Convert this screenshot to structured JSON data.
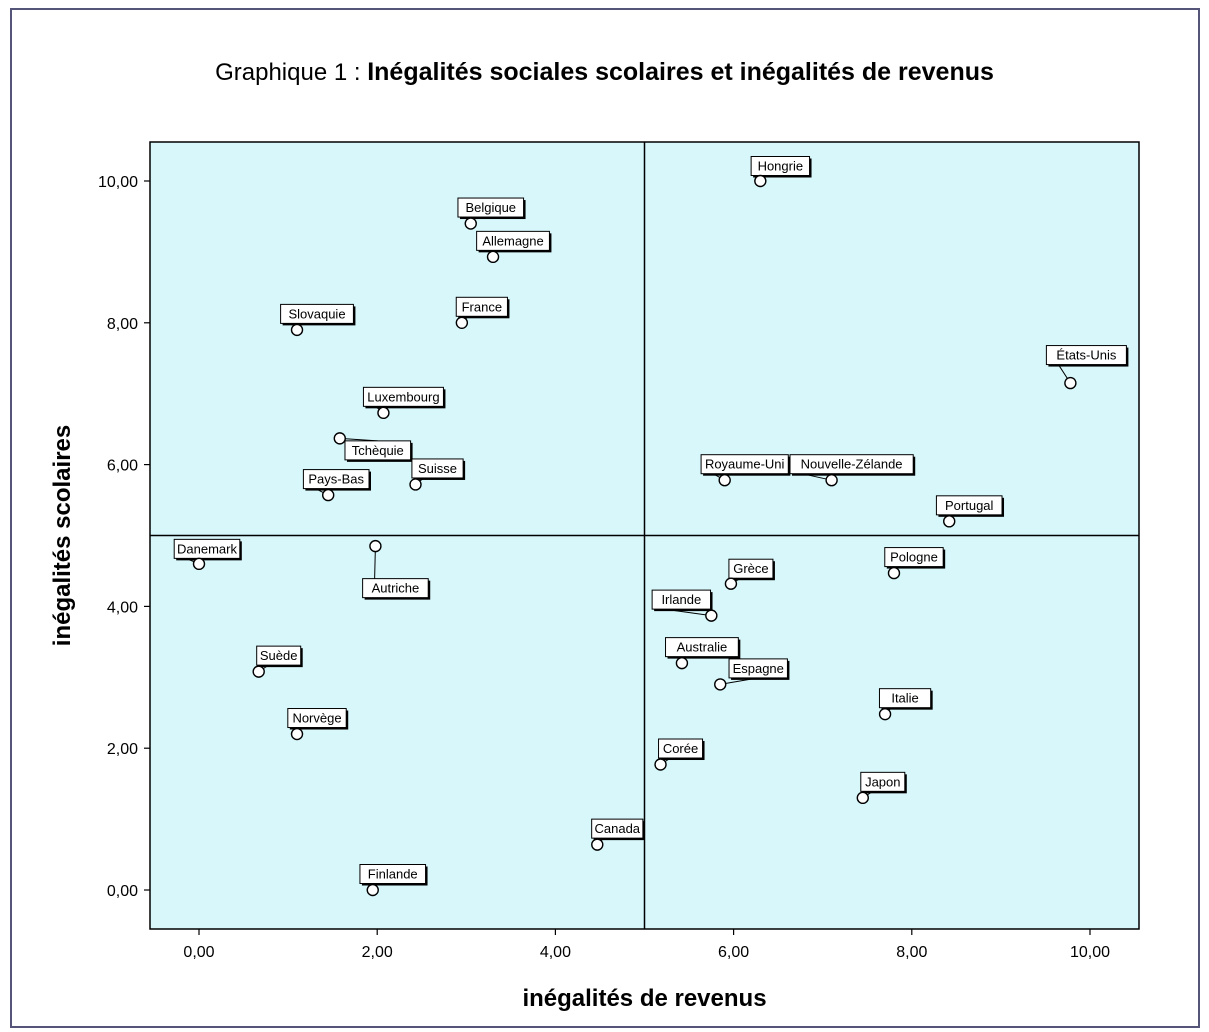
{
  "chart_data": {
    "type": "scatter",
    "title_prefix": "Graphique 1 :",
    "title": "Inégalités sociales scolaires et inégalités de revenus",
    "xlabel": "inégalités de revenus",
    "ylabel": "inégalités scolaires",
    "xlim": [
      -0.55,
      10.55
    ],
    "ylim": [
      -0.55,
      10.55
    ],
    "xticks": [
      "0,00",
      "2,00",
      "4,00",
      "6,00",
      "8,00",
      "10,00"
    ],
    "yticks": [
      "0,00",
      "2,00",
      "4,00",
      "6,00",
      "8,00",
      "10,00"
    ],
    "reference_lines": {
      "x": 5.0,
      "y": 5.0
    },
    "background_color": "#d7f7fb",
    "points": [
      {
        "label": "Hongrie",
        "x": 6.3,
        "y": 10.0
      },
      {
        "label": "Belgique",
        "x": 3.05,
        "y": 9.4
      },
      {
        "label": "Allemagne",
        "x": 3.3,
        "y": 8.93
      },
      {
        "label": "France",
        "x": 2.95,
        "y": 8.0
      },
      {
        "label": "Slovaquie",
        "x": 1.1,
        "y": 7.9
      },
      {
        "label": "États-Unis",
        "x": 9.78,
        "y": 7.15
      },
      {
        "label": "Luxembourg",
        "x": 2.07,
        "y": 6.73
      },
      {
        "label": "Tchèquie",
        "x": 1.58,
        "y": 6.37
      },
      {
        "label": "Suisse",
        "x": 2.43,
        "y": 5.72
      },
      {
        "label": "Pays-Bas",
        "x": 1.45,
        "y": 5.57
      },
      {
        "label": "Royaume-Uni",
        "x": 5.9,
        "y": 5.78
      },
      {
        "label": "Nouvelle-Zélande",
        "x": 7.1,
        "y": 5.78
      },
      {
        "label": "Portugal",
        "x": 8.42,
        "y": 5.2
      },
      {
        "label": "Danemark",
        "x": 0.0,
        "y": 4.6
      },
      {
        "label": "Autriche",
        "x": 1.98,
        "y": 4.85
      },
      {
        "label": "Pologne",
        "x": 7.8,
        "y": 4.47
      },
      {
        "label": "Grèce",
        "x": 5.97,
        "y": 4.32
      },
      {
        "label": "Irlande",
        "x": 5.75,
        "y": 3.87
      },
      {
        "label": "Australie",
        "x": 5.42,
        "y": 3.2
      },
      {
        "label": "Espagne",
        "x": 5.85,
        "y": 2.9
      },
      {
        "label": "Suède",
        "x": 0.67,
        "y": 3.08
      },
      {
        "label": "Italie",
        "x": 7.7,
        "y": 2.48
      },
      {
        "label": "Norvège",
        "x": 1.1,
        "y": 2.2
      },
      {
        "label": "Corée",
        "x": 5.18,
        "y": 1.77
      },
      {
        "label": "Japon",
        "x": 7.45,
        "y": 1.3
      },
      {
        "label": "Canada",
        "x": 4.47,
        "y": 0.64
      },
      {
        "label": "Finlande",
        "x": 1.95,
        "y": 0.0
      }
    ]
  }
}
